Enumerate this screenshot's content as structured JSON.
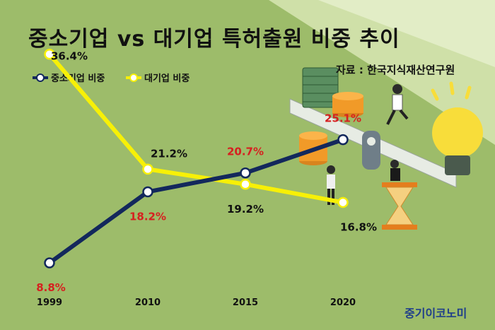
{
  "title": "중소기업 vs 대기업 특허출원 비중 추이",
  "source": "자료 : 한국지식재산연구원",
  "brand": "중기이코노미",
  "colors": {
    "sme": "#13285c",
    "large": "#f7f007",
    "sme_label": "#d62020",
    "large_label": "#111111"
  },
  "legend": [
    {
      "name": "중소기업 비중",
      "color": "#13285c"
    },
    {
      "name": "대기업 비중",
      "color": "#f7f007"
    }
  ],
  "chart_data": {
    "type": "line",
    "title": "중소기업 vs 대기업 특허출원 비중 추이",
    "categories": [
      "1999",
      "2010",
      "2015",
      "2020"
    ],
    "series": [
      {
        "name": "중소기업 비중",
        "values": [
          8.8,
          18.2,
          20.7,
          25.1
        ],
        "labels": [
          "8.8%",
          "18.2%",
          "20.7%",
          "25.1%"
        ]
      },
      {
        "name": "대기업 비중",
        "values": [
          36.4,
          21.2,
          19.2,
          16.8
        ],
        "labels": [
          "36.4%",
          "21.2%",
          "19.2%",
          "16.8%"
        ]
      }
    ],
    "ylim": [
      5,
      40
    ],
    "grid": false,
    "legend_position": "top-left"
  }
}
